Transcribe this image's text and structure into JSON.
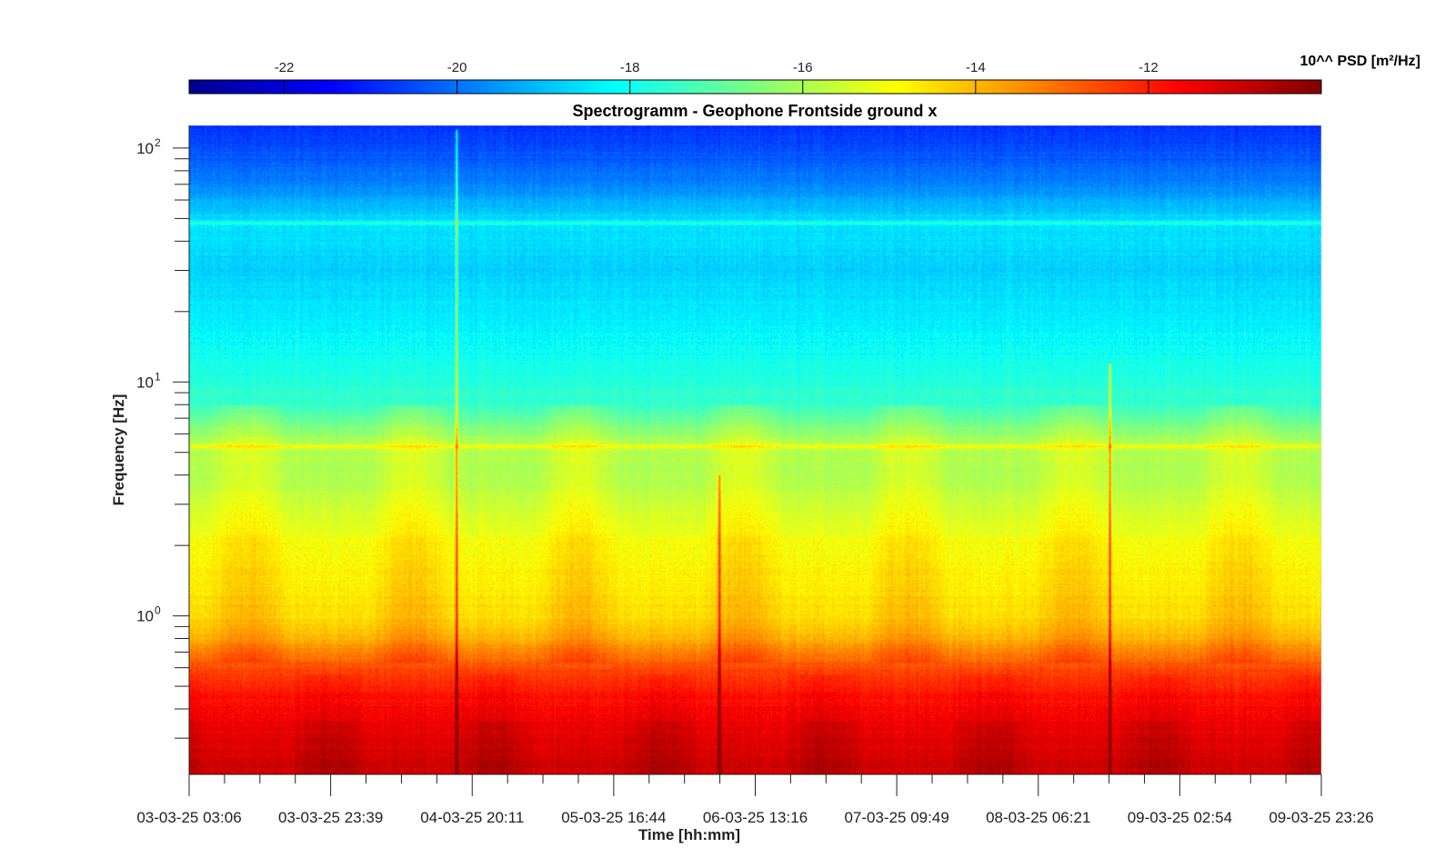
{
  "chart_data": {
    "type": "heatmap",
    "title": "Spectrogramm - Geophone Frontside ground x",
    "xlabel": "Time [hh:mm]",
    "ylabel": "Frequency [Hz]",
    "colorbar": {
      "label": "10^^ PSD [m²/Hz]",
      "ticks": [
        -22,
        -20,
        -18,
        -16,
        -14,
        -12
      ],
      "tick_labels": [
        "-22",
        "-20",
        "-18",
        "-16",
        "-14",
        "-12"
      ],
      "range": [
        -23.1,
        -10.0
      ],
      "colormap": "jet",
      "placement": "top"
    },
    "x_ticks": [
      "03-03-25 03:06",
      "03-03-25 23:39",
      "04-03-25 20:11",
      "05-03-25 16:44",
      "06-03-25 13:16",
      "07-03-25 09:49",
      "08-03-25 06:21",
      "09-03-25 02:54",
      "09-03-25 23:26"
    ],
    "y_scale": "log",
    "y_range": [
      0.21,
      125
    ],
    "y_major_ticks": [
      {
        "value": 1,
        "base": "10",
        "exp": "0"
      },
      {
        "value": 10,
        "base": "10",
        "exp": "1"
      },
      {
        "value": 100,
        "base": "10",
        "exp": "2"
      }
    ],
    "psd_profile_by_frequency": [
      {
        "f": 0.22,
        "log_psd": -11.0
      },
      {
        "f": 0.3,
        "log_psd": -11.3
      },
      {
        "f": 0.45,
        "log_psd": -11.8
      },
      {
        "f": 0.6,
        "log_psd": -12.6
      },
      {
        "f": 0.8,
        "log_psd": -14.0
      },
      {
        "f": 1.0,
        "log_psd": -14.5
      },
      {
        "f": 2.0,
        "log_psd": -15.0
      },
      {
        "f": 4.0,
        "log_psd": -16.0
      },
      {
        "f": 5.3,
        "log_psd": -15.8
      },
      {
        "f": 8.0,
        "log_psd": -17.5
      },
      {
        "f": 15.0,
        "log_psd": -18.2
      },
      {
        "f": 30.0,
        "log_psd": -18.8
      },
      {
        "f": 48.0,
        "log_psd": -18.5
      },
      {
        "f": 70.0,
        "log_psd": -19.8
      },
      {
        "f": 100.0,
        "log_psd": -20.5
      },
      {
        "f": 125.0,
        "log_psd": -20.8
      }
    ],
    "narrowband_lines_hz": [
      5.3,
      48.0
    ],
    "transient_events": [
      {
        "time": "04-03-25 ~15:00",
        "max_freq_hz": 120
      },
      {
        "time": "06-03-25 ~08:00",
        "max_freq_hz": 4
      },
      {
        "time": "08-03-25 ~20:00",
        "max_freq_hz": 12
      }
    ],
    "grid": false
  }
}
